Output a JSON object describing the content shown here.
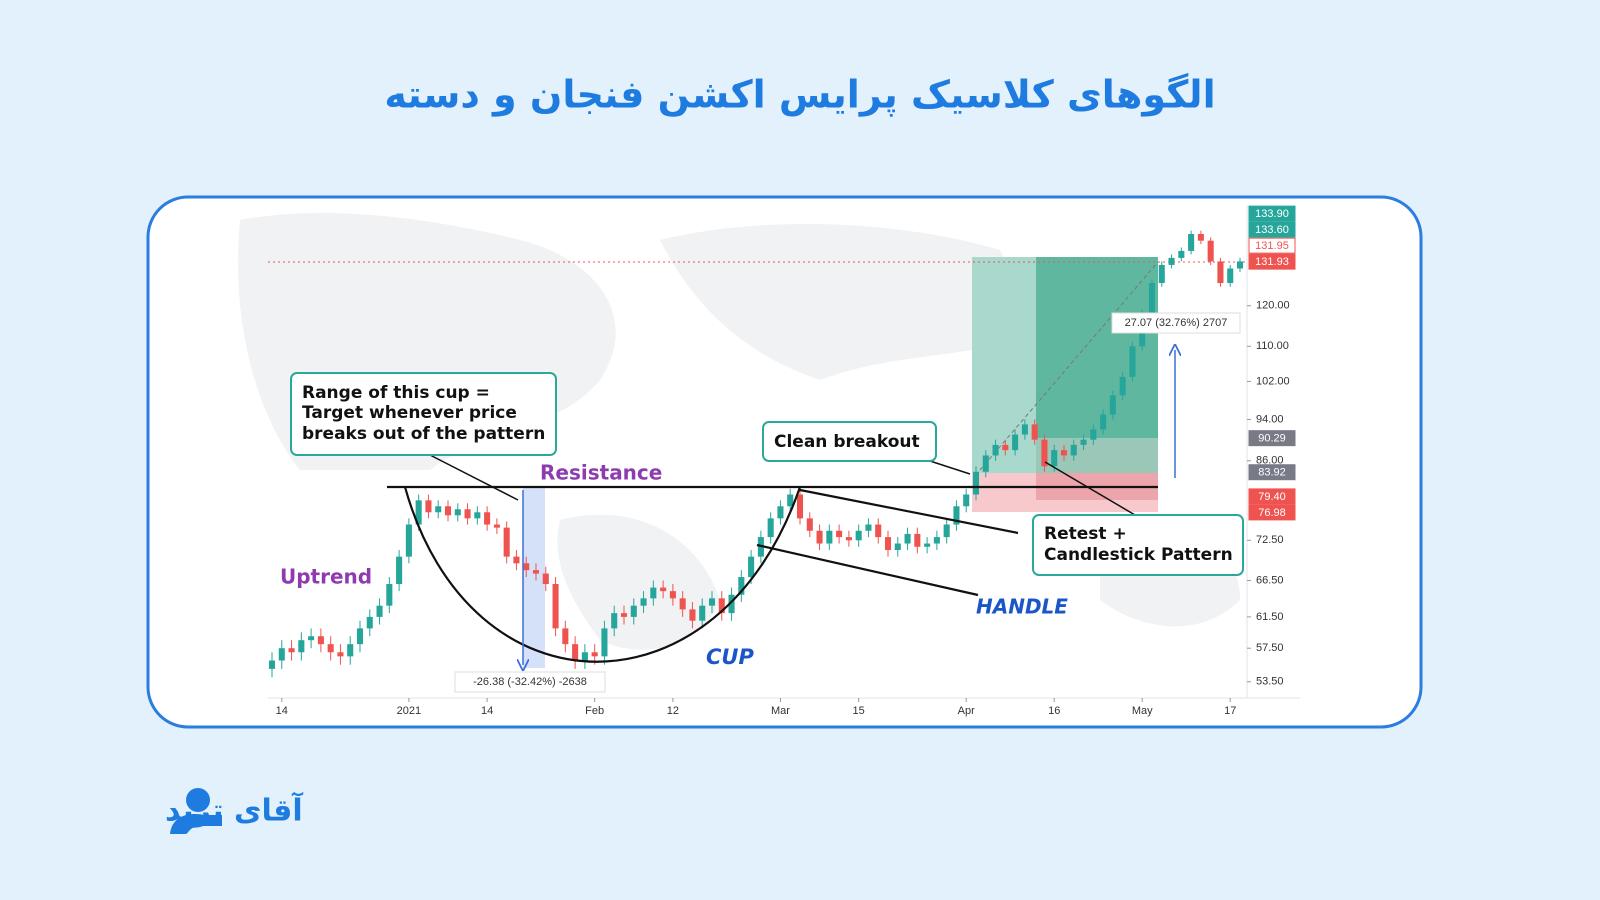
{
  "page_title": "الگوهای کلاسیک پرایس اکشن فنجان و دسته",
  "logo": "آقای ترید",
  "chart_data": {
    "type": "candlestick",
    "log_scale": true,
    "grid": false,
    "up_color": "#26a69a",
    "down_color": "#ef5350",
    "xlim": [
      0,
      99
    ],
    "xticks": [
      {
        "value": 1,
        "label": "14"
      },
      {
        "value": 14,
        "label": "2021"
      },
      {
        "value": 22,
        "label": "14"
      },
      {
        "value": 33,
        "label": "Feb"
      },
      {
        "value": 41,
        "label": "12"
      },
      {
        "value": 52,
        "label": "Mar"
      },
      {
        "value": 60,
        "label": "15"
      },
      {
        "value": 71,
        "label": "Apr"
      },
      {
        "value": 80,
        "label": "16"
      },
      {
        "value": 89,
        "label": "May"
      },
      {
        "value": 98,
        "label": "17"
      }
    ],
    "ylim": [
      52,
      149
    ],
    "yticks": [
      {
        "value": 53.5,
        "label": "53.50"
      },
      {
        "value": 57.5,
        "label": "57.50"
      },
      {
        "value": 61.5,
        "label": "61.50"
      },
      {
        "value": 66.5,
        "label": "66.50"
      },
      {
        "value": 72.5,
        "label": "72.50"
      },
      {
        "value": 86,
        "label": "86.00"
      },
      {
        "value": 94,
        "label": "94.00"
      },
      {
        "value": 102,
        "label": "102.00"
      },
      {
        "value": 110,
        "label": "110.00"
      },
      {
        "value": 120,
        "label": "120.00"
      }
    ],
    "price_tags": [
      {
        "value": 133.9,
        "label": "133.90",
        "color": "#26a69a"
      },
      {
        "value": 133.6,
        "label": "133.60",
        "color": "#26a69a"
      },
      {
        "value": 131.95,
        "label": "131.95",
        "color": "#ffffff"
      },
      {
        "value": 131.93,
        "label": "131.93",
        "color": "#ef5350"
      },
      {
        "value": 90.29,
        "label": "90.29",
        "color": "#787b86"
      },
      {
        "value": 83.92,
        "label": "83.92",
        "color": "#787b86"
      },
      {
        "value": 79.4,
        "label": "79.40",
        "color": "#ef5350"
      },
      {
        "value": 76.98,
        "label": "76.98",
        "color": "#ef5350"
      }
    ],
    "open": [
      55,
      56,
      57.5,
      57,
      58.5,
      59,
      58,
      57,
      56.5,
      58,
      60,
      61.5,
      63,
      66,
      70,
      75,
      79,
      77,
      78,
      76.5,
      77.5,
      76,
      77,
      75,
      74.5,
      70,
      69,
      68,
      67.5,
      66,
      60,
      58,
      56,
      57,
      56.5,
      60,
      62,
      61.5,
      63,
      64,
      65.5,
      65,
      64,
      62.5,
      61,
      63,
      64,
      62,
      64.5,
      67,
      70,
      73,
      76,
      78,
      80,
      76,
      74,
      72,
      74,
      73,
      72.5,
      74,
      75,
      73,
      71,
      72,
      73.5,
      71.5,
      72,
      73,
      75,
      78,
      80,
      84,
      87,
      89,
      88,
      91,
      93,
      90,
      85,
      88,
      87,
      89,
      90,
      92,
      95,
      99,
      103,
      110,
      118,
      126,
      131,
      133,
      135,
      140,
      138,
      132,
      126,
      130
    ],
    "high": [
      57,
      58.5,
      58.5,
      59.5,
      60,
      60,
      59,
      58,
      59,
      61,
      62.5,
      64,
      67,
      71,
      76,
      80,
      80,
      79,
      79,
      78.5,
      78.5,
      78,
      78,
      76,
      75.5,
      71,
      70,
      69,
      68.5,
      67,
      61,
      59,
      58,
      58,
      61,
      63,
      63,
      64,
      65,
      66.5,
      66.5,
      66,
      65,
      63.5,
      64,
      65,
      65,
      65.5,
      68,
      71,
      74,
      77,
      79,
      81,
      81,
      77,
      75,
      75,
      75,
      74,
      75,
      76,
      76,
      74,
      73,
      74.5,
      74.5,
      73,
      74,
      76,
      79,
      81,
      85,
      88,
      90,
      90,
      92,
      94,
      94,
      91,
      89,
      89,
      90,
      91,
      93,
      96,
      100,
      104,
      111,
      119,
      127,
      132,
      134,
      136,
      141,
      141,
      139,
      133,
      131,
      133
    ],
    "low": [
      54,
      55,
      56,
      56,
      57.5,
      57,
      56,
      55.5,
      55.5,
      57,
      59,
      60.5,
      62,
      65,
      69,
      74,
      76,
      76,
      75.5,
      75.5,
      75,
      75,
      74,
      73.5,
      69,
      68,
      67,
      66.5,
      65,
      59,
      57,
      55,
      55,
      55.5,
      55.5,
      59,
      60.5,
      60.5,
      62,
      63,
      64,
      63,
      61.5,
      60,
      60,
      62,
      61,
      61,
      63.5,
      66,
      69,
      72,
      75,
      77,
      75,
      73,
      71,
      71,
      72,
      71.5,
      71.5,
      73,
      72,
      70,
      70,
      71,
      70.5,
      70.5,
      71,
      72,
      74,
      77,
      79,
      83,
      86,
      87,
      87,
      90,
      89,
      84,
      84,
      86,
      86,
      88,
      89,
      91,
      94,
      98,
      102,
      109,
      117,
      125,
      130,
      132,
      134,
      137,
      131,
      125,
      125,
      129
    ],
    "close": [
      56,
      57.5,
      57,
      58.5,
      59,
      58,
      57,
      56.5,
      58,
      60,
      61.5,
      63,
      66,
      70,
      75,
      79,
      77,
      78,
      76.5,
      77.5,
      76,
      77,
      75,
      74.5,
      70,
      69,
      68,
      67.5,
      66,
      60,
      58,
      56,
      57,
      56.5,
      60,
      62,
      61.5,
      63,
      64,
      65.5,
      65,
      64,
      62.5,
      61,
      63,
      64,
      62,
      64.5,
      67,
      70,
      73,
      76,
      78,
      80,
      76,
      74,
      72,
      74,
      73,
      72.5,
      74,
      75,
      73,
      71,
      72,
      73.5,
      71.5,
      72,
      73,
      75,
      78,
      80,
      84,
      87,
      89,
      88,
      91,
      93,
      90,
      85,
      88,
      87,
      89,
      90,
      92,
      95,
      99,
      103,
      110,
      118,
      126,
      131,
      133,
      135,
      140,
      138,
      132,
      126,
      130,
      132
    ],
    "annotations": {
      "cup_range": [
        "Range of this cup =",
        "Target whenever price",
        "breaks out of the pattern"
      ],
      "resistance": "Resistance",
      "uptrend": "Uptrend",
      "cup": "CUP",
      "handle": "HANDLE",
      "clean_breakout": "Clean breakout",
      "retest": [
        "Retest +",
        "Candlestick Pattern"
      ],
      "cup_measure": "-26.38 (-32.42%) -2638",
      "target_measure": "27.07 (32.76%) 2707"
    }
  }
}
